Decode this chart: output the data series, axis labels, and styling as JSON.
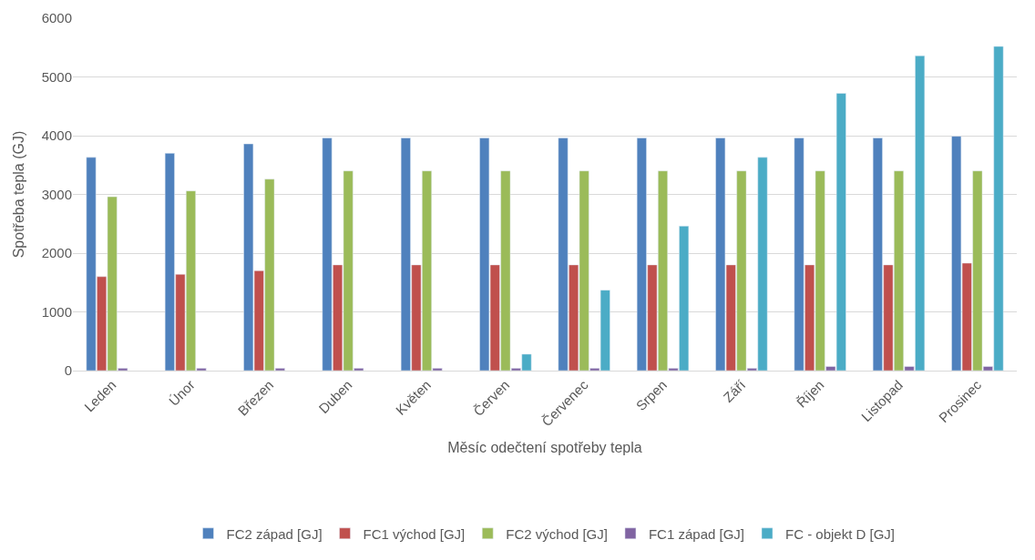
{
  "chart_data": {
    "type": "bar",
    "xlabel": "Měsíc odečtení spotřeby tepla",
    "ylabel": "Spotřeba tepla (GJ)",
    "categories": [
      "Leden",
      "Únor",
      "Březen",
      "Duben",
      "Květen",
      "Červen",
      "Červenec",
      "Srpen",
      "Září",
      "Říjen",
      "Listopad",
      "Prosinec"
    ],
    "series": [
      {
        "name": "FC2 západ [GJ]",
        "color": "#4f81bd",
        "values": [
          3630,
          3700,
          3860,
          3960,
          3960,
          3960,
          3960,
          3960,
          3960,
          3960,
          3960,
          3990
        ]
      },
      {
        "name": "FC1 východ [GJ]",
        "color": "#c0504d",
        "values": [
          1600,
          1640,
          1700,
          1800,
          1800,
          1800,
          1800,
          1800,
          1800,
          1800,
          1800,
          1830
        ]
      },
      {
        "name": "FC2 východ [GJ]",
        "color": "#9bbb59",
        "values": [
          2960,
          3060,
          3260,
          3400,
          3400,
          3400,
          3400,
          3400,
          3400,
          3400,
          3400,
          3400
        ]
      },
      {
        "name": "FC1 západ [GJ]",
        "color": "#8064a2",
        "values": [
          40,
          40,
          40,
          40,
          40,
          40,
          40,
          40,
          40,
          70,
          70,
          70
        ]
      },
      {
        "name": "FC - objekt D [GJ]",
        "color": "#4bacc6",
        "values": [
          null,
          null,
          null,
          null,
          null,
          280,
          1370,
          2460,
          3630,
          4720,
          5360,
          5520
        ]
      }
    ],
    "ylim": [
      0,
      6000
    ],
    "yticks": [
      0,
      1000,
      2000,
      3000,
      4000,
      5000,
      6000
    ],
    "grid": "y",
    "legend": "bottom"
  }
}
